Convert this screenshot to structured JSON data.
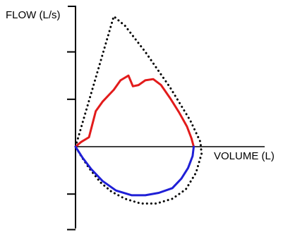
{
  "chart_data": {
    "type": "line",
    "title": "",
    "ylabel": "FLOW (L/s)",
    "xlabel": "VOLUME (L)",
    "x_tick_labels": [],
    "y_tick_labels": [],
    "xlim": [
      0,
      6.5
    ],
    "ylim": [
      -3,
      6
    ],
    "grid": false,
    "legend": "none",
    "series": [
      {
        "style": "dotted",
        "color": "#000000",
        "points": [
          [
            0,
            0
          ],
          [
            1.7,
            5.5
          ],
          [
            2.2,
            5.1
          ],
          [
            3.1,
            4.0
          ],
          [
            4.2,
            2.5
          ],
          [
            5.1,
            1.1
          ],
          [
            5.55,
            0.2
          ],
          [
            5.6,
            -0.3
          ],
          [
            5.35,
            -1.1
          ],
          [
            4.9,
            -1.8
          ],
          [
            4.3,
            -2.2
          ],
          [
            3.6,
            -2.4
          ],
          [
            2.9,
            -2.4
          ],
          [
            2.2,
            -2.2
          ],
          [
            1.6,
            -1.9
          ],
          [
            1.1,
            -1.5
          ],
          [
            0.6,
            -0.9
          ],
          [
            0.25,
            -0.4
          ],
          [
            0,
            0
          ]
        ]
      },
      {
        "style": "solid",
        "color": "#e21b1b",
        "points": [
          [
            0,
            0
          ],
          [
            0.25,
            0.2
          ],
          [
            0.6,
            0.4
          ],
          [
            0.9,
            1.5
          ],
          [
            1.2,
            1.9
          ],
          [
            1.5,
            2.2
          ],
          [
            1.7,
            2.4
          ],
          [
            2.0,
            2.8
          ],
          [
            2.35,
            3.0
          ],
          [
            2.55,
            2.55
          ],
          [
            2.8,
            2.6
          ],
          [
            3.1,
            2.8
          ],
          [
            3.45,
            2.85
          ],
          [
            3.8,
            2.6
          ],
          [
            4.2,
            2.05
          ],
          [
            4.6,
            1.45
          ],
          [
            4.95,
            0.85
          ],
          [
            5.15,
            0.35
          ],
          [
            5.25,
            0
          ]
        ]
      },
      {
        "style": "solid",
        "color": "#1f1fd6",
        "points": [
          [
            0,
            0
          ],
          [
            0.3,
            -0.45
          ],
          [
            0.7,
            -0.95
          ],
          [
            1.2,
            -1.45
          ],
          [
            1.8,
            -1.85
          ],
          [
            2.5,
            -2.05
          ],
          [
            3.1,
            -2.05
          ],
          [
            3.7,
            -1.95
          ],
          [
            4.3,
            -1.75
          ],
          [
            4.7,
            -1.35
          ],
          [
            5.0,
            -0.9
          ],
          [
            5.2,
            -0.4
          ],
          [
            5.25,
            0
          ]
        ]
      }
    ]
  }
}
